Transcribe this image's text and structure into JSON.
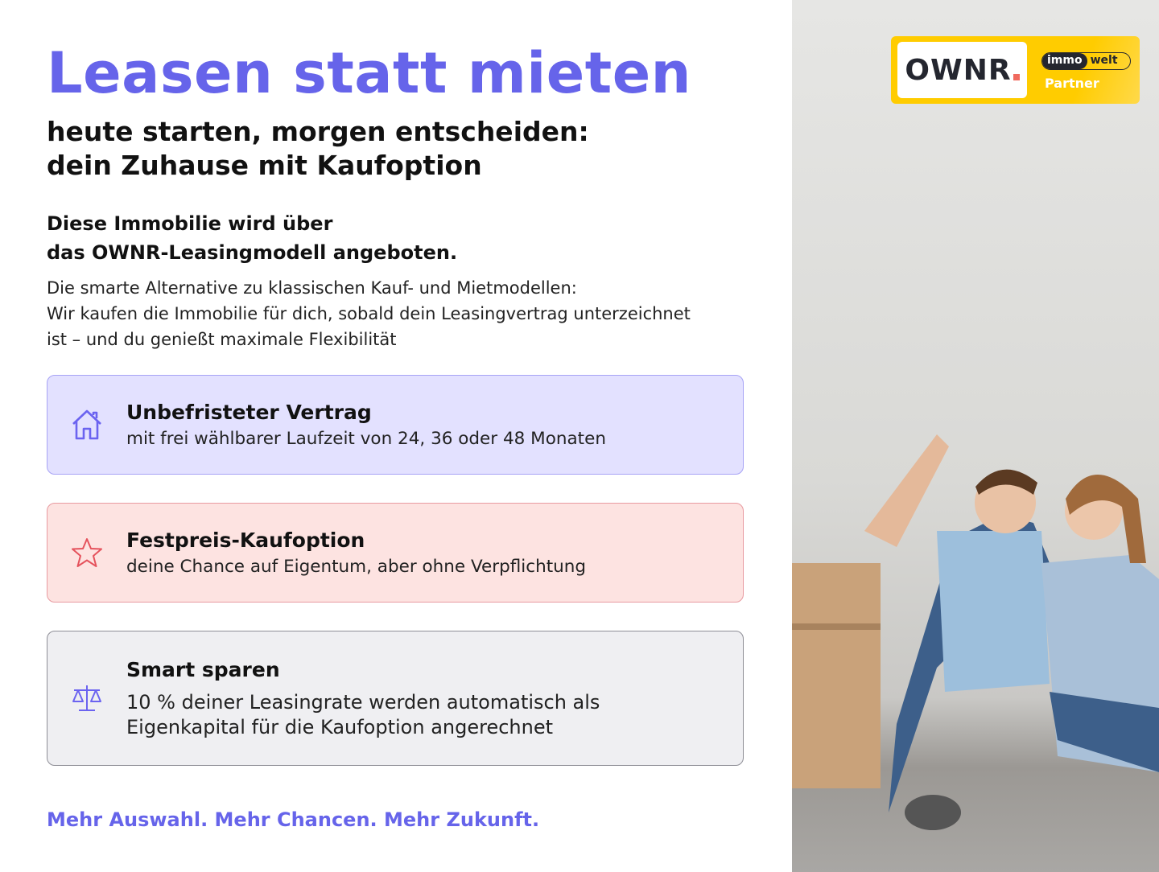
{
  "title": "Leasen statt mieten",
  "subtitle": [
    "heute starten, morgen entscheiden:",
    "dein Zuhause mit Kaufoption"
  ],
  "intro": {
    "heading": [
      "Diese Immobilie wird über",
      "das OWNR-Leasingmodell angeboten."
    ],
    "text": [
      "Die smarte Alternative zu klassischen Kauf- und Mietmodellen:",
      "Wir kaufen die Immobilie für dich, sobald dein Leasingvertrag unterzeichnet",
      "ist – und du genießt maximale Flexibilität"
    ]
  },
  "cards": [
    {
      "icon": "house-icon",
      "title": "Unbefristeter Vertrag",
      "desc": [
        "mit frei wählbarer Laufzeit von 24, 36 oder 48 Monaten"
      ]
    },
    {
      "icon": "star-icon",
      "title": "Festpreis-Kaufoption",
      "desc": [
        "deine Chance auf Eigentum, aber ohne Verpflichtung"
      ]
    },
    {
      "icon": "scale-icon",
      "title": "Smart sparen",
      "desc": [
        "10 % deiner Leasingrate werden automatisch als",
        "Eigenkapital für die Kaufoption angerechnet"
      ]
    }
  ],
  "tagline": "Mehr Auswahl. Mehr Chancen. Mehr Zukunft.",
  "badge": {
    "brand": "OWNR",
    "immo_a": "immo",
    "immo_b": "welt",
    "partner": "Partner"
  },
  "colors": {
    "accent": "#6664ea",
    "card1": "#e3e1ff",
    "card2": "#fde3e1",
    "card3": "#efeff2",
    "badge": "#ffcc00",
    "star": "#e5525c"
  }
}
